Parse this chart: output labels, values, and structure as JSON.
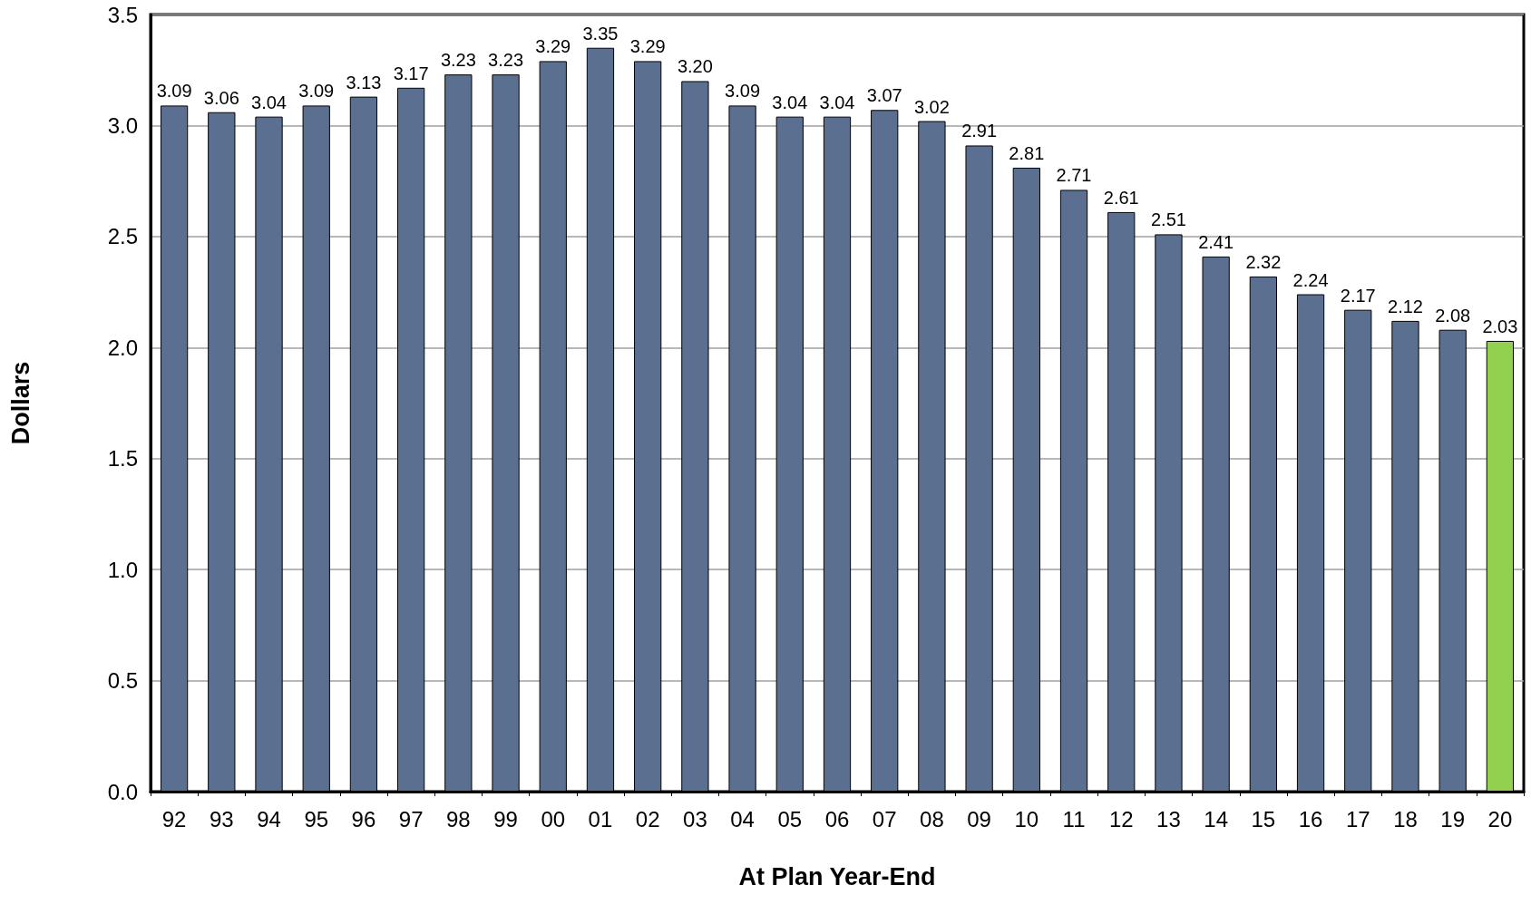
{
  "chart_data": {
    "type": "bar",
    "xlabel": "At Plan Year-End",
    "ylabel": "Dollars",
    "categories": [
      "92",
      "93",
      "94",
      "95",
      "96",
      "97",
      "98",
      "99",
      "00",
      "01",
      "02",
      "03",
      "04",
      "05",
      "06",
      "07",
      "08",
      "09",
      "10",
      "11",
      "12",
      "13",
      "14",
      "15",
      "16",
      "17",
      "18",
      "19",
      "20"
    ],
    "values": [
      3.09,
      3.06,
      3.04,
      3.09,
      3.13,
      3.17,
      3.23,
      3.23,
      3.29,
      3.35,
      3.29,
      3.2,
      3.09,
      3.04,
      3.04,
      3.07,
      3.02,
      2.91,
      2.81,
      2.71,
      2.61,
      2.51,
      2.41,
      2.32,
      2.24,
      2.17,
      2.12,
      2.08,
      2.03
    ],
    "value_labels": [
      "3.09",
      "3.06",
      "3.04",
      "3.09",
      "3.13",
      "3.17",
      "3.23",
      "3.23",
      "3.29",
      "3.35",
      "3.29",
      "3.20",
      "3.09",
      "3.04",
      "3.04",
      "3.07",
      "3.02",
      "2.91",
      "2.81",
      "2.71",
      "2.61",
      "2.51",
      "2.41",
      "2.32",
      "2.24",
      "2.17",
      "2.12",
      "2.08",
      "2.03"
    ],
    "colors": [
      "#5b7090",
      "#5b7090",
      "#5b7090",
      "#5b7090",
      "#5b7090",
      "#5b7090",
      "#5b7090",
      "#5b7090",
      "#5b7090",
      "#5b7090",
      "#5b7090",
      "#5b7090",
      "#5b7090",
      "#5b7090",
      "#5b7090",
      "#5b7090",
      "#5b7090",
      "#5b7090",
      "#5b7090",
      "#5b7090",
      "#5b7090",
      "#5b7090",
      "#5b7090",
      "#5b7090",
      "#5b7090",
      "#5b7090",
      "#5b7090",
      "#5b7090",
      "#92d050"
    ],
    "ylim": [
      0,
      3.5
    ],
    "yticks": [
      {
        "value": 0,
        "label": "0.0"
      },
      {
        "value": 0.5,
        "label": "0.5"
      },
      {
        "value": 1,
        "label": "1.0"
      },
      {
        "value": 1.5,
        "label": "1.5"
      },
      {
        "value": 2,
        "label": "2.0"
      },
      {
        "value": 2.5,
        "label": "2.5"
      },
      {
        "value": 3,
        "label": "3.0"
      },
      {
        "value": 3.5,
        "label": "3.5"
      }
    ],
    "grid": "y"
  }
}
